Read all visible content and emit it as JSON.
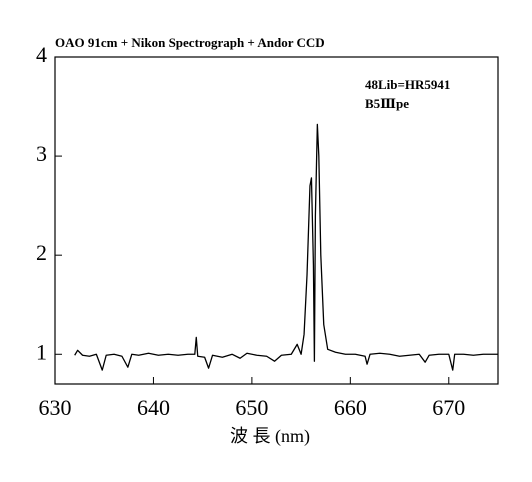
{
  "chart_data": {
    "type": "line",
    "title": "OAO 91cm + Nikon Spectrograph + Andor CCD",
    "annotations": [
      "48Lib=HR5941",
      "B5Ⅲpe"
    ],
    "x_label": "波 長 (nm)",
    "xlim": [
      630,
      675
    ],
    "xticks": [
      630,
      640,
      650,
      660,
      670
    ],
    "ylim": [
      0.7,
      4
    ],
    "yticks": [
      1,
      2,
      3,
      4
    ],
    "series": [
      {
        "color": "#000000",
        "x": [
          632,
          632.3,
          632.8,
          633.5,
          634.2,
          634.8,
          635.2,
          636,
          636.8,
          637.4,
          637.8,
          638.5,
          639.5,
          640.5,
          641.5,
          642.5,
          643.5,
          644.2,
          644.35,
          644.5,
          645.2,
          645.6,
          646,
          647,
          648,
          648.8,
          649.5,
          650.5,
          651.5,
          652.3,
          653,
          654,
          654.6,
          655,
          655.3,
          655.6,
          655.9,
          656.05,
          656.25,
          656.35,
          656.45,
          656.65,
          656.8,
          657,
          657.3,
          657.7,
          658.5,
          659.5,
          660.5,
          661.5,
          661.7,
          662,
          663,
          664,
          665,
          666,
          667,
          667.6,
          668,
          669,
          670,
          670.4,
          670.6,
          671.5,
          672.5,
          673.5,
          675
        ],
        "values": [
          0.99,
          1.04,
          0.99,
          0.98,
          1.0,
          0.84,
          0.99,
          1.0,
          0.98,
          0.87,
          1.0,
          0.99,
          1.01,
          0.99,
          1.0,
          0.99,
          1.0,
          1.0,
          1.17,
          0.98,
          0.97,
          0.86,
          0.99,
          0.97,
          1.0,
          0.96,
          1.01,
          0.99,
          0.98,
          0.93,
          0.99,
          1.0,
          1.1,
          1.0,
          1.2,
          1.8,
          2.7,
          2.78,
          1.9,
          0.93,
          2.4,
          3.32,
          3.0,
          2.0,
          1.3,
          1.05,
          1.02,
          1.0,
          1.0,
          0.98,
          0.9,
          1.0,
          1.01,
          1.0,
          0.98,
          0.99,
          1.0,
          0.92,
          0.99,
          1.0,
          1.0,
          0.84,
          1.0,
          1.0,
          0.99,
          1.0,
          1.0
        ]
      }
    ]
  }
}
